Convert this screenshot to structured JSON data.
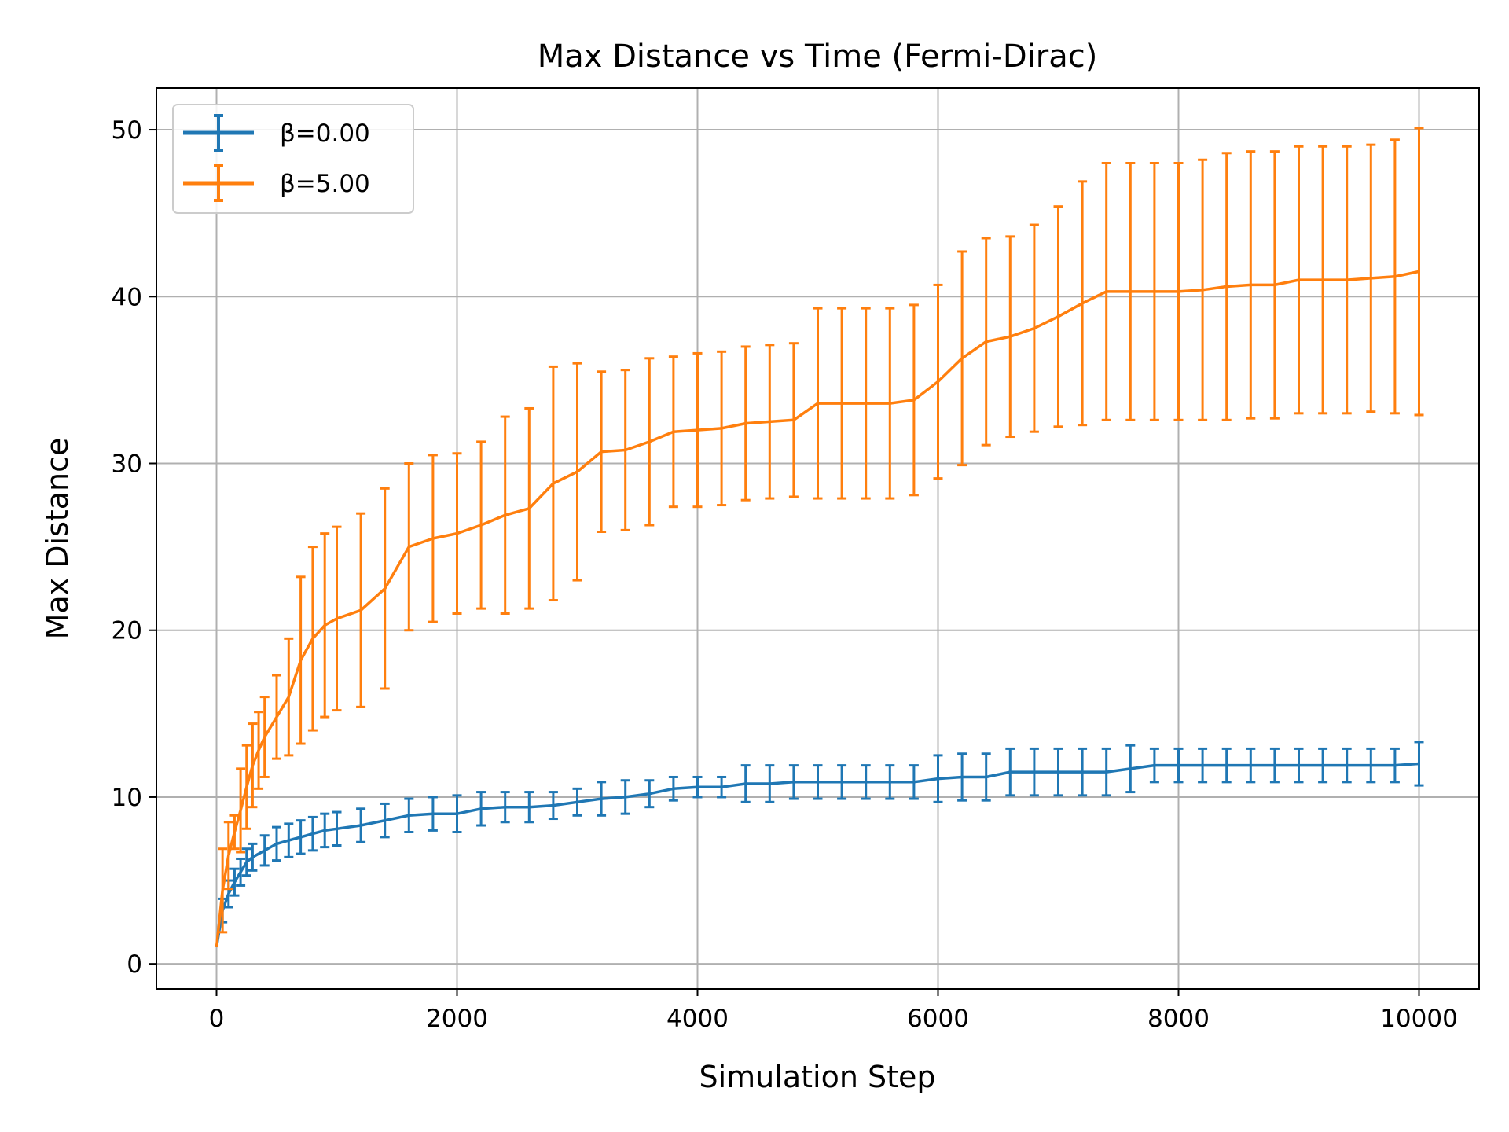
{
  "chart_data": {
    "type": "line",
    "title": "Max Distance vs Time (Fermi-Dirac)",
    "xlabel": "Simulation Step",
    "ylabel": "Max Distance",
    "xlim": [
      -500,
      10500
    ],
    "ylim": [
      -1.5,
      52.5
    ],
    "xticks": [
      0,
      2000,
      4000,
      6000,
      8000,
      10000
    ],
    "xtick_labels": [
      "0",
      "2000",
      "4000",
      "6000",
      "8000",
      "10000"
    ],
    "yticks": [
      0,
      10,
      20,
      30,
      40,
      50
    ],
    "ytick_labels": [
      "0",
      "10",
      "20",
      "30",
      "40",
      "50"
    ],
    "grid": true,
    "legend_position": "top-left",
    "error_bars": true,
    "series": [
      {
        "name": "β=0.00",
        "color": "#1f77b4",
        "points": [
          [
            0,
            1.0,
            0.0
          ],
          [
            50,
            3.2,
            0.7
          ],
          [
            100,
            4.2,
            0.8
          ],
          [
            150,
            4.9,
            0.8
          ],
          [
            200,
            5.5,
            0.8
          ],
          [
            250,
            6.1,
            0.8
          ],
          [
            300,
            6.4,
            0.8
          ],
          [
            400,
            6.8,
            0.9
          ],
          [
            500,
            7.2,
            1.0
          ],
          [
            600,
            7.4,
            1.0
          ],
          [
            700,
            7.6,
            1.0
          ],
          [
            800,
            7.8,
            1.0
          ],
          [
            900,
            8.0,
            1.0
          ],
          [
            1000,
            8.1,
            1.0
          ],
          [
            1200,
            8.3,
            1.0
          ],
          [
            1400,
            8.6,
            1.0
          ],
          [
            1600,
            8.9,
            1.0
          ],
          [
            1800,
            9.0,
            1.0
          ],
          [
            2000,
            9.0,
            1.1
          ],
          [
            2200,
            9.3,
            1.0
          ],
          [
            2400,
            9.4,
            0.9
          ],
          [
            2600,
            9.4,
            0.9
          ],
          [
            2800,
            9.5,
            0.8
          ],
          [
            3000,
            9.7,
            0.8
          ],
          [
            3200,
            9.9,
            1.0
          ],
          [
            3400,
            10.0,
            1.0
          ],
          [
            3600,
            10.2,
            0.8
          ],
          [
            3800,
            10.5,
            0.7
          ],
          [
            4000,
            10.6,
            0.6
          ],
          [
            4200,
            10.6,
            0.6
          ],
          [
            4400,
            10.8,
            1.1
          ],
          [
            4600,
            10.8,
            1.1
          ],
          [
            4800,
            10.9,
            1.0
          ],
          [
            5000,
            10.9,
            1.0
          ],
          [
            5200,
            10.9,
            1.0
          ],
          [
            5400,
            10.9,
            1.0
          ],
          [
            5600,
            10.9,
            1.0
          ],
          [
            5800,
            10.9,
            1.0
          ],
          [
            6000,
            11.1,
            1.4
          ],
          [
            6200,
            11.2,
            1.4
          ],
          [
            6400,
            11.2,
            1.4
          ],
          [
            6600,
            11.5,
            1.4
          ],
          [
            6800,
            11.5,
            1.4
          ],
          [
            7000,
            11.5,
            1.4
          ],
          [
            7200,
            11.5,
            1.4
          ],
          [
            7400,
            11.5,
            1.4
          ],
          [
            7600,
            11.7,
            1.4
          ],
          [
            7800,
            11.9,
            1.0
          ],
          [
            8000,
            11.9,
            1.0
          ],
          [
            8200,
            11.9,
            1.0
          ],
          [
            8400,
            11.9,
            1.0
          ],
          [
            8600,
            11.9,
            1.0
          ],
          [
            8800,
            11.9,
            1.0
          ],
          [
            9000,
            11.9,
            1.0
          ],
          [
            9200,
            11.9,
            1.0
          ],
          [
            9400,
            11.9,
            1.0
          ],
          [
            9600,
            11.9,
            1.0
          ],
          [
            9800,
            11.9,
            1.0
          ],
          [
            10000,
            12.0,
            1.3
          ]
        ]
      },
      {
        "name": "β=5.00",
        "color": "#ff7f0e",
        "points": [
          [
            0,
            1.0,
            0.0
          ],
          [
            50,
            4.4,
            2.5
          ],
          [
            100,
            6.5,
            2.0
          ],
          [
            150,
            7.9,
            1.0
          ],
          [
            200,
            9.2,
            2.5
          ],
          [
            250,
            10.6,
            2.5
          ],
          [
            300,
            11.9,
            2.5
          ],
          [
            350,
            12.8,
            2.3
          ],
          [
            400,
            13.6,
            2.4
          ],
          [
            500,
            14.8,
            2.5
          ],
          [
            600,
            16.0,
            3.5
          ],
          [
            700,
            18.2,
            5.0
          ],
          [
            800,
            19.5,
            5.5
          ],
          [
            900,
            20.3,
            5.5
          ],
          [
            1000,
            20.7,
            5.5
          ],
          [
            1200,
            21.2,
            5.8
          ],
          [
            1400,
            22.5,
            6.0
          ],
          [
            1600,
            25.0,
            5.0
          ],
          [
            1800,
            25.5,
            5.0
          ],
          [
            2000,
            25.8,
            4.8
          ],
          [
            2200,
            26.3,
            5.0
          ],
          [
            2400,
            26.9,
            5.9
          ],
          [
            2600,
            27.3,
            6.0
          ],
          [
            2800,
            28.8,
            7.0
          ],
          [
            3000,
            29.5,
            6.5
          ],
          [
            3200,
            30.7,
            4.8
          ],
          [
            3400,
            30.8,
            4.8
          ],
          [
            3600,
            31.3,
            5.0
          ],
          [
            3800,
            31.9,
            4.5
          ],
          [
            4000,
            32.0,
            4.6
          ],
          [
            4200,
            32.1,
            4.6
          ],
          [
            4400,
            32.4,
            4.6
          ],
          [
            4600,
            32.5,
            4.6
          ],
          [
            4800,
            32.6,
            4.6
          ],
          [
            5000,
            33.6,
            5.7
          ],
          [
            5200,
            33.6,
            5.7
          ],
          [
            5400,
            33.6,
            5.7
          ],
          [
            5600,
            33.6,
            5.7
          ],
          [
            5800,
            33.8,
            5.7
          ],
          [
            6000,
            34.9,
            5.8
          ],
          [
            6200,
            36.3,
            6.4
          ],
          [
            6400,
            37.3,
            6.2
          ],
          [
            6600,
            37.6,
            6.0
          ],
          [
            6800,
            38.1,
            6.2
          ],
          [
            7000,
            38.8,
            6.6
          ],
          [
            7200,
            39.6,
            7.3
          ],
          [
            7400,
            40.3,
            7.7
          ],
          [
            7600,
            40.3,
            7.7
          ],
          [
            7800,
            40.3,
            7.7
          ],
          [
            8000,
            40.3,
            7.7
          ],
          [
            8200,
            40.4,
            7.8
          ],
          [
            8400,
            40.6,
            8.0
          ],
          [
            8600,
            40.7,
            8.0
          ],
          [
            8800,
            40.7,
            8.0
          ],
          [
            9000,
            41.0,
            8.0
          ],
          [
            9200,
            41.0,
            8.0
          ],
          [
            9400,
            41.0,
            8.0
          ],
          [
            9600,
            41.1,
            8.0
          ],
          [
            9800,
            41.2,
            8.2
          ],
          [
            10000,
            41.5,
            8.6
          ]
        ]
      }
    ]
  }
}
